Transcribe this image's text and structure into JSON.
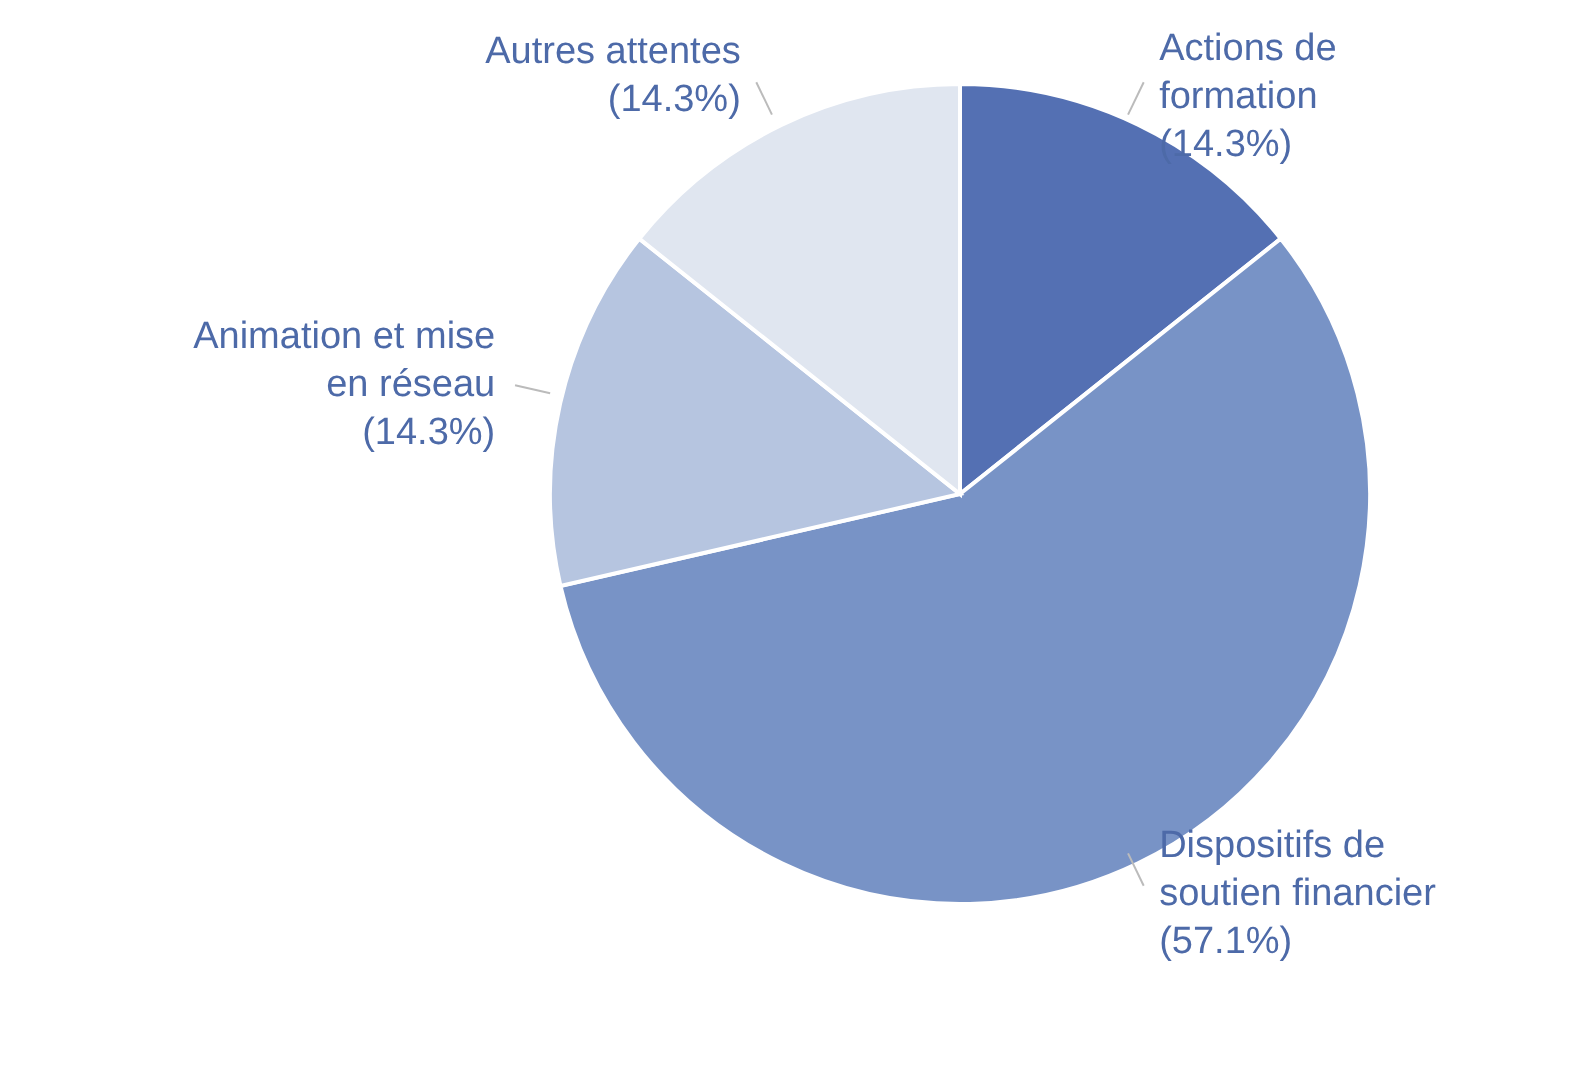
{
  "chart_data": {
    "type": "pie",
    "categories": [
      "Actions de formation",
      "Dispositifs de soutien financier",
      "Animation et mise en réseau",
      "Autres attentes"
    ],
    "values": [
      14.3,
      57.1,
      14.3,
      14.3
    ],
    "colors": [
      "#5470b3",
      "#7893c6",
      "#b6c5e0",
      "#e0e6f0"
    ],
    "value_labels": [
      "(14.3%)",
      "(57.1%)",
      "(14.3%)",
      "(14.3%)"
    ],
    "legend": false
  }
}
